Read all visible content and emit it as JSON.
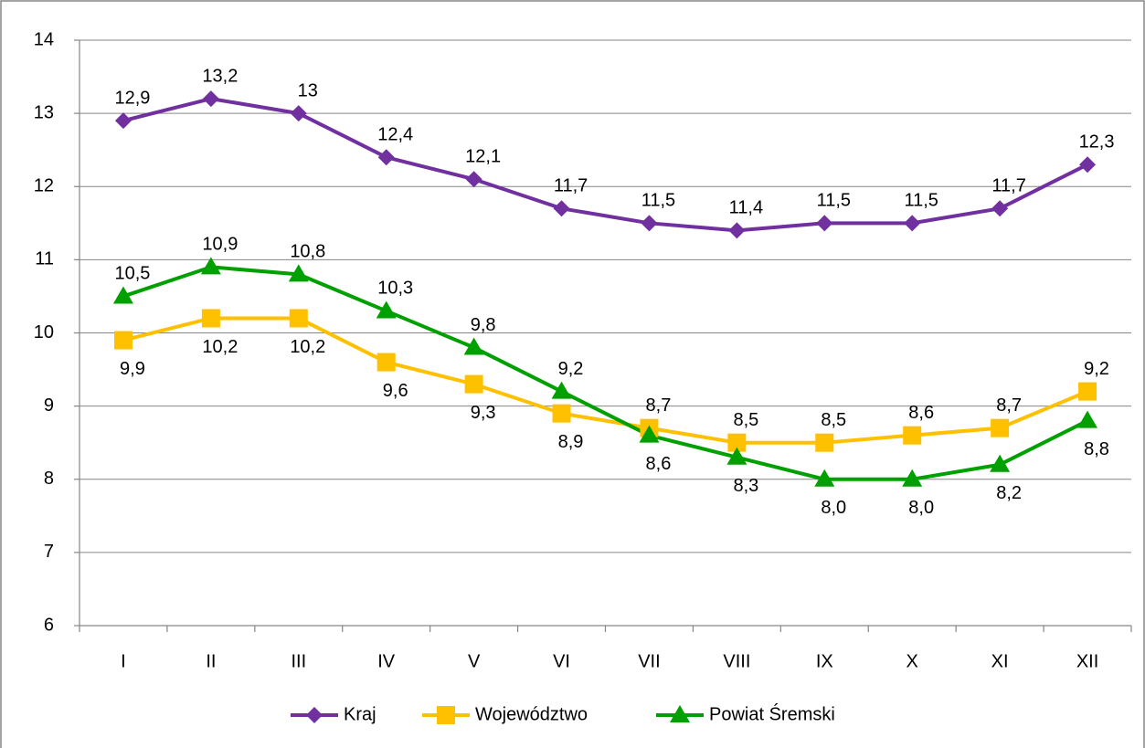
{
  "chart_data": {
    "type": "line",
    "categories": [
      "I",
      "II",
      "III",
      "IV",
      "V",
      "VI",
      "VII",
      "VIII",
      "IX",
      "X",
      "XI",
      "XII"
    ],
    "series": [
      {
        "name": "Kraj",
        "color": "#7030a0",
        "marker": "diamond",
        "values": [
          12.9,
          13.2,
          13,
          12.4,
          12.1,
          11.7,
          11.5,
          11.4,
          11.5,
          11.5,
          11.7,
          12.3
        ],
        "value_labels": [
          "12,9",
          "13,2",
          "13",
          "12,4",
          "12,1",
          "11,7",
          "11,5",
          "11,4",
          "11,5",
          "11,5",
          "11,7",
          "12,3"
        ]
      },
      {
        "name": "Województwo",
        "color": "#ffc000",
        "marker": "square",
        "values": [
          9.9,
          10.2,
          10.2,
          9.6,
          9.3,
          8.9,
          8.7,
          8.5,
          8.5,
          8.6,
          8.7,
          9.2
        ],
        "value_labels": [
          "9,9",
          "10,2",
          "10,2",
          "9,6",
          "9,3",
          "8,9",
          "8,7",
          "8,5",
          "8,5",
          "8,6",
          "8,7",
          "9,2"
        ]
      },
      {
        "name": "Powiat Śremski",
        "color": "#00a000",
        "marker": "triangle",
        "values": [
          10.5,
          10.9,
          10.8,
          10.3,
          9.8,
          9.2,
          8.6,
          8.3,
          8.0,
          8.0,
          8.2,
          8.8
        ],
        "value_labels": [
          "10,5",
          "10,9",
          "10,8",
          "10,3",
          "9,8",
          "9,2",
          "8,6",
          "8,3",
          "8,0",
          "8,0",
          "8,2",
          "8,8"
        ]
      }
    ],
    "ylim": [
      6,
      14
    ],
    "yticks": [
      6,
      7,
      8,
      9,
      10,
      11,
      12,
      13,
      14
    ],
    "grid": true,
    "legend": "bottom"
  }
}
